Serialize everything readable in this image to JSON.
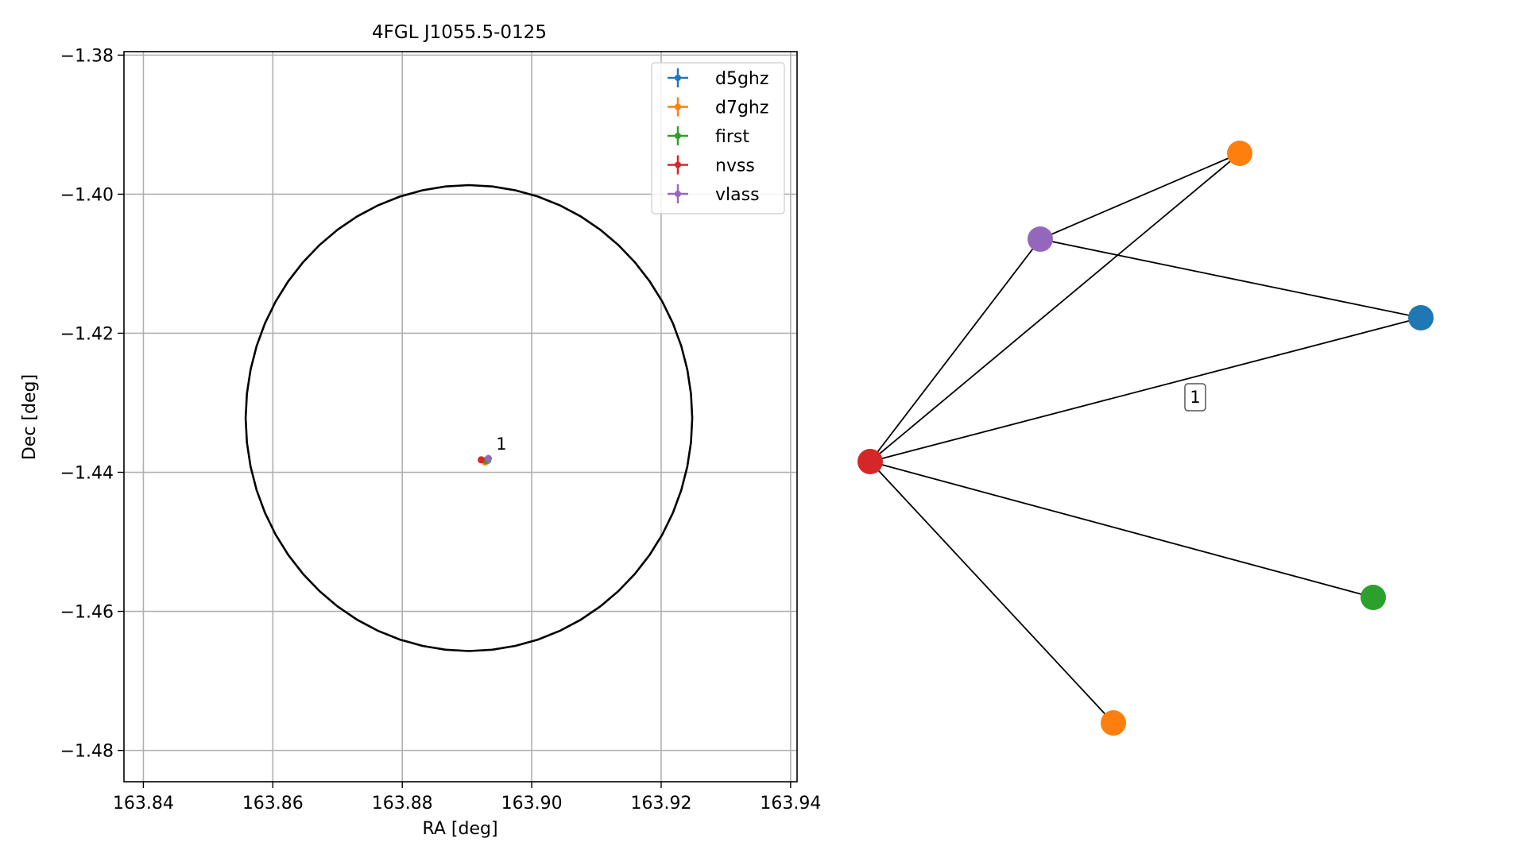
{
  "chart_data": [
    {
      "type": "scatter",
      "title": "4FGL J1055.5-0125",
      "xlabel": "RA [deg]",
      "ylabel": "Dec [deg]",
      "xlim": [
        163.837,
        163.941
      ],
      "ylim": [
        -1.4845,
        -1.3795
      ],
      "xticks": [
        163.84,
        163.86,
        163.88,
        163.9,
        163.92,
        163.94
      ],
      "xtick_labels": [
        "163.84",
        "163.86",
        "163.88",
        "163.90",
        "163.92",
        "163.94"
      ],
      "yticks": [
        -1.38,
        -1.4,
        -1.42,
        -1.44,
        -1.46,
        -1.48
      ],
      "ytick_labels": [
        "−1.38",
        "−1.40",
        "−1.42",
        "−1.44",
        "−1.46",
        "−1.48"
      ],
      "grid": true,
      "legend_position": "top-right",
      "error_circle": {
        "center": [
          163.8903,
          -1.4322
        ],
        "radius_ra": 0.0345,
        "radius_dec": 0.0335
      },
      "series": [
        {
          "name": "d5ghz",
          "color": "#1f77b4",
          "points": [
            [
              163.8932,
              -1.4383
            ]
          ]
        },
        {
          "name": "d7ghz",
          "color": "#ff7f0e",
          "points": [
            [
              163.8928,
              -1.4385
            ],
            [
              163.8931,
              -1.4383
            ]
          ]
        },
        {
          "name": "first",
          "color": "#2ca02c",
          "points": [
            [
              163.8929,
              -1.4383
            ]
          ]
        },
        {
          "name": "nvss",
          "color": "#d62728",
          "points": [
            [
              163.8922,
              -1.4382
            ]
          ]
        },
        {
          "name": "vlass",
          "color": "#9467bd",
          "points": [
            [
              163.8933,
              -1.438
            ]
          ]
        }
      ],
      "annotations": [
        {
          "text": "1",
          "x": 163.894,
          "y": -1.4374
        }
      ]
    },
    {
      "type": "diagram",
      "nodes": [
        {
          "id": "nvss",
          "color": "#d62728"
        },
        {
          "id": "vlass",
          "color": "#9467bd"
        },
        {
          "id": "d7ghz_top",
          "color": "#ff7f0e"
        },
        {
          "id": "d5ghz",
          "color": "#1f77b4"
        },
        {
          "id": "first",
          "color": "#2ca02c"
        },
        {
          "id": "d7ghz_bottom",
          "color": "#ff7f0e"
        }
      ],
      "edges": [
        [
          "nvss",
          "vlass"
        ],
        [
          "nvss",
          "d7ghz_top"
        ],
        [
          "nvss",
          "d5ghz"
        ],
        [
          "nvss",
          "first"
        ],
        [
          "nvss",
          "d7ghz_bottom"
        ],
        [
          "vlass",
          "d7ghz_top"
        ],
        [
          "vlass",
          "d5ghz"
        ]
      ],
      "edge_label": "1"
    }
  ]
}
